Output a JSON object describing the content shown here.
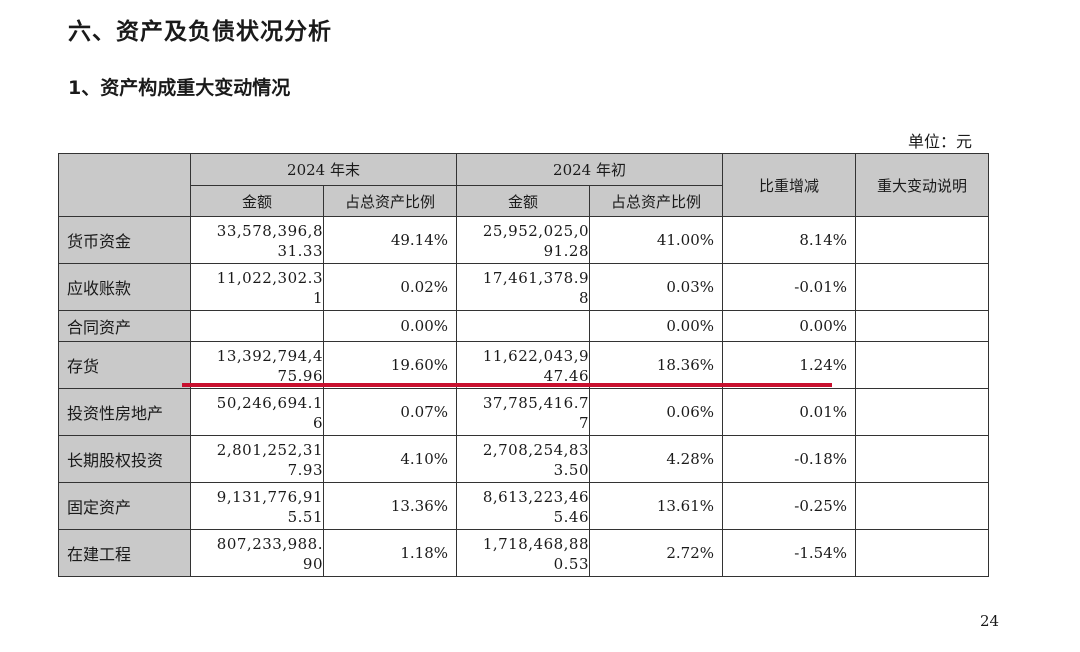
{
  "section_title": "六、资产及负债状况分析",
  "subsection_title": "1、资产构成重大变动情况",
  "unit": "单位：元",
  "headers": {
    "period_end": "2024 年末",
    "period_start": "2024 年初",
    "amount": "金额",
    "ratio": "占总资产比例",
    "change": "比重增减",
    "explanation": "重大变动说明"
  },
  "rows": [
    {
      "item": "货币资金",
      "end_amount": "33,578,396,831.33",
      "end_ratio": "49.14%",
      "start_amount": "25,952,025,091.28",
      "start_ratio": "41.00%",
      "change": "8.14%",
      "note": ""
    },
    {
      "item": "应收账款",
      "end_amount": "11,022,302.31",
      "end_ratio": "0.02%",
      "start_amount": "17,461,378.98",
      "start_ratio": "0.03%",
      "change": "-0.01%",
      "note": ""
    },
    {
      "item": "合同资产",
      "end_amount": "",
      "end_ratio": "0.00%",
      "start_amount": "",
      "start_ratio": "0.00%",
      "change": "0.00%",
      "note": ""
    },
    {
      "item": "存货",
      "end_amount": "13,392,794,475.96",
      "end_ratio": "19.60%",
      "start_amount": "11,622,043,947.46",
      "start_ratio": "18.36%",
      "change": "1.24%",
      "note": ""
    },
    {
      "item": "投资性房地产",
      "end_amount": "50,246,694.16",
      "end_ratio": "0.07%",
      "start_amount": "37,785,416.77",
      "start_ratio": "0.06%",
      "change": "0.01%",
      "note": ""
    },
    {
      "item": "长期股权投资",
      "end_amount": "2,801,252,317.93",
      "end_ratio": "4.10%",
      "start_amount": "2,708,254,833.50",
      "start_ratio": "4.28%",
      "change": "-0.18%",
      "note": ""
    },
    {
      "item": "固定资产",
      "end_amount": "9,131,776,915.51",
      "end_ratio": "13.36%",
      "start_amount": "8,613,223,465.46",
      "start_ratio": "13.61%",
      "change": "-0.25%",
      "note": ""
    },
    {
      "item": "在建工程",
      "end_amount": "807,233,988.90",
      "end_ratio": "1.18%",
      "start_amount": "1,718,468,880.53",
      "start_ratio": "2.72%",
      "change": "-1.54%",
      "note": ""
    }
  ],
  "annotation_color": "#c8102e",
  "page_number": "24"
}
